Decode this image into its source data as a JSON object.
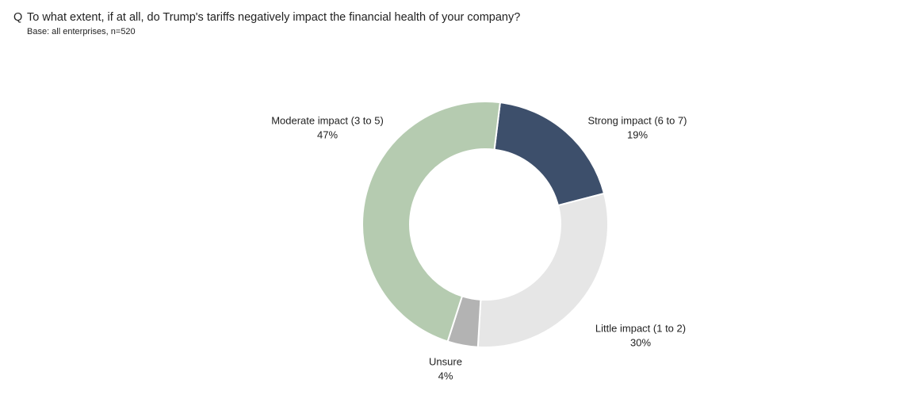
{
  "chart_data": {
    "type": "donut",
    "title_marker": "Q",
    "title": "To what extent, if at all, do Trump's tariffs negatively impact the financial health of your company?",
    "subtitle": "Base: all enterprises,  n=520",
    "categories": [
      "Strong impact (6 to 7)",
      "Little impact (1 to 2)",
      "Unsure",
      "Moderate impact (3 to 5)"
    ],
    "values": [
      19,
      30,
      4,
      47
    ],
    "value_labels": [
      "19%",
      "30%",
      "4%",
      "47%"
    ],
    "colors": [
      "#3d4f6b",
      "#e6e6e6",
      "#b3b3b3",
      "#b5cbb0"
    ]
  }
}
